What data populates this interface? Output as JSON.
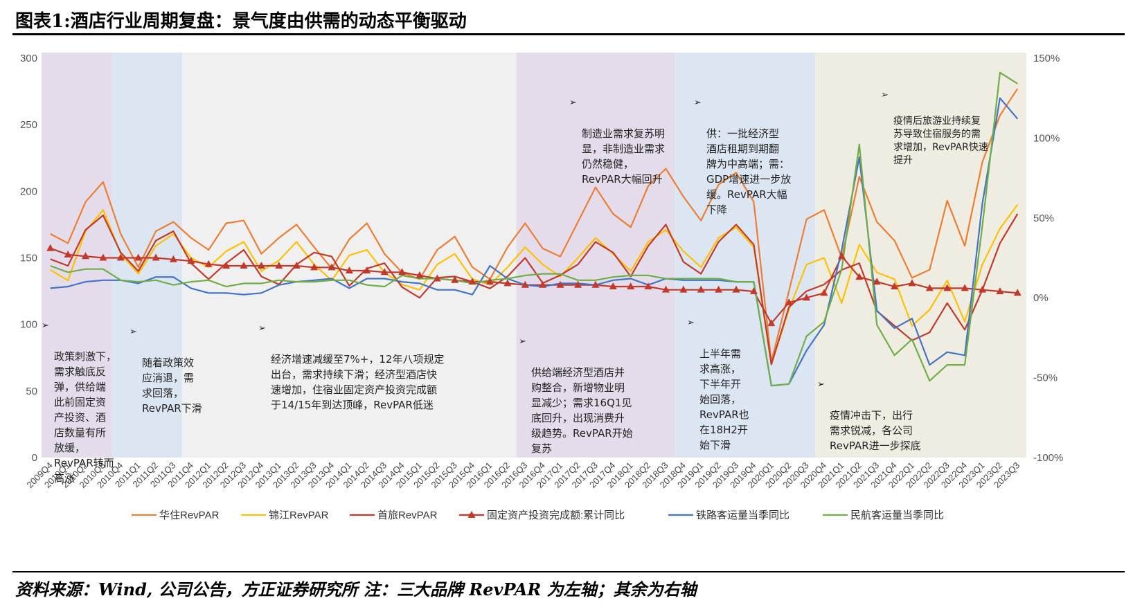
{
  "title": "图表1:酒店行业周期复盘：景气度由供需的动态平衡驱动",
  "source": "资料来源：Wind, 公司公告，方正证券研究所 注：三大品牌 RevPAR 为左轴；其余为右轴",
  "bullet_glyph": "➢",
  "chart_data": {
    "type": "line",
    "categories": [
      "2009Q4",
      "2010Q1",
      "2010Q2",
      "2010Q3",
      "2010Q4",
      "2011Q1",
      "2011Q2",
      "2011Q3",
      "2011Q4",
      "2012Q1",
      "2012Q2",
      "2012Q3",
      "2012Q4",
      "2013Q1",
      "2013Q2",
      "2013Q3",
      "2013Q4",
      "2014Q1",
      "2014Q2",
      "2014Q3",
      "2014Q4",
      "2015Q1",
      "2015Q2",
      "2015Q3",
      "2015Q4",
      "2016Q1",
      "2016Q2",
      "2016Q3",
      "2016Q4",
      "2017Q1",
      "2017Q2",
      "2017Q3",
      "2017Q4",
      "2018Q1",
      "2018Q2",
      "2018Q3",
      "2018Q4",
      "2019Q1",
      "2019Q2",
      "2019Q3",
      "2019Q4",
      "2020Q1",
      "2020Q2",
      "2020Q3",
      "2020Q4",
      "2021Q1",
      "2021Q2",
      "2021Q3",
      "2021Q4",
      "2022Q1",
      "2022Q2",
      "2022Q3",
      "2022Q4",
      "2023Q1",
      "2023Q2",
      "2023Q3"
    ],
    "y_left": {
      "min": 0,
      "max": 300,
      "ticks": [
        "0",
        "50",
        "100",
        "150",
        "200",
        "250",
        "300"
      ]
    },
    "y_right": {
      "min": -100,
      "max": 150,
      "ticks": [
        "-100%",
        "-50%",
        "0%",
        "50%",
        "100%",
        "150%"
      ]
    },
    "series": [
      {
        "name": "华住RevPAR",
        "axis": "left",
        "color": "#ED7D31",
        "marker": "none",
        "values": [
          168,
          161,
          192,
          207,
          168,
          143,
          170,
          177,
          165,
          156,
          176,
          178,
          153,
          165,
          175,
          158,
          142,
          164,
          176,
          153,
          139,
          134,
          156,
          166,
          143,
          134,
          158,
          176,
          157,
          151,
          177,
          203,
          183,
          173,
          204,
          217,
          196,
          178,
          205,
          214,
          192,
          72,
          125,
          179,
          186,
          150,
          211,
          177,
          163,
          135,
          141,
          193,
          159,
          222,
          257,
          277
        ]
      },
      {
        "name": "锦江RevPAR",
        "axis": "left",
        "color": "#FFC000",
        "marker": "none",
        "values": [
          141,
          133,
          170,
          186,
          153,
          138,
          159,
          168,
          150,
          143,
          155,
          162,
          140,
          148,
          162,
          145,
          133,
          152,
          156,
          139,
          130,
          126,
          145,
          153,
          134,
          130,
          143,
          158,
          145,
          136,
          150,
          165,
          153,
          140,
          162,
          171,
          155,
          143,
          165,
          173,
          158,
          70,
          111,
          145,
          150,
          116,
          160,
          139,
          134,
          99,
          111,
          133,
          102,
          145,
          172,
          190
        ]
      },
      {
        "name": "首旅RevPAR",
        "axis": "left",
        "color": "#C0392B",
        "marker": "none",
        "values": [
          149,
          144,
          171,
          182,
          154,
          140,
          163,
          170,
          146,
          134,
          146,
          156,
          136,
          130,
          145,
          154,
          151,
          129,
          142,
          146,
          128,
          120,
          135,
          136,
          132,
          127,
          136,
          150,
          131,
          137,
          145,
          162,
          154,
          136,
          159,
          175,
          147,
          138,
          162,
          175,
          160,
          70,
          113,
          125,
          130,
          141,
          146,
          110,
          99,
          88,
          94,
          116,
          96,
          126,
          161,
          183
        ]
      },
      {
        "name": "固定资产投资完成额:累计同比",
        "axis": "right",
        "color": "#C0392B",
        "marker": "triangle",
        "values": [
          31,
          27,
          26,
          25,
          25,
          25,
          25,
          24,
          23,
          21,
          20,
          20,
          20,
          20,
          20,
          19,
          19,
          17,
          17,
          16,
          16,
          14,
          12,
          11,
          10,
          10,
          9,
          8,
          8,
          8,
          8,
          8,
          7,
          7,
          7,
          5,
          5,
          5,
          5,
          5,
          4,
          -16,
          -3,
          0,
          3,
          26,
          13,
          10,
          7,
          9,
          6,
          6,
          6,
          5,
          4,
          3
        ]
      },
      {
        "name": "铁路客运量当季同比",
        "axis": "right",
        "color": "#4472C4",
        "marker": "none",
        "values": [
          6,
          7,
          10,
          11,
          11,
          9,
          13,
          13,
          6,
          3,
          3,
          2,
          3,
          8,
          10,
          11,
          12,
          6,
          12,
          12,
          10,
          9,
          5,
          5,
          2,
          20,
          12,
          8,
          7,
          9,
          9,
          8,
          11,
          12,
          8,
          12,
          11,
          11,
          11,
          10,
          10,
          -55,
          -54,
          -33,
          -17,
          30,
          88,
          -8,
          -19,
          -13,
          -42,
          -34,
          -36,
          59,
          125,
          112
        ]
      },
      {
        "name": "民航客运量当季同比",
        "axis": "right",
        "color": "#70AD47",
        "marker": "none",
        "values": [
          20,
          16,
          18,
          18,
          11,
          10,
          11,
          8,
          10,
          11,
          7,
          9,
          9,
          11,
          10,
          10,
          11,
          11,
          8,
          7,
          14,
          12,
          12,
          11,
          9,
          11,
          12,
          14,
          15,
          15,
          11,
          11,
          13,
          14,
          14,
          12,
          12,
          12,
          12,
          10,
          10,
          -55,
          -54,
          -24,
          -15,
          18,
          96,
          -17,
          -36,
          -26,
          -52,
          -42,
          -42,
          45,
          141,
          134
        ]
      }
    ],
    "shaded_periods": [
      {
        "from": "2009Q4",
        "to": "2010Q3",
        "color": "#E4DCEB"
      },
      {
        "from": "2010Q4",
        "to": "2011Q3",
        "color": "#DCE6F2"
      },
      {
        "from": "2011Q4",
        "to": "2016Q2",
        "color": "#F0F0F0"
      },
      {
        "from": "2016Q3",
        "to": "2018Q3",
        "color": "#E4DCEB"
      },
      {
        "from": "2018Q4",
        "to": "2020Q3",
        "color": "#DCE6F2"
      },
      {
        "from": "2020Q4",
        "to": "2023Q3",
        "color": "#EFEDE2"
      }
    ],
    "annotations": [
      "政策刺激下，\n需求触底反\n弹，供给端\n此前固定资\n产投资、酒\n店数量有所\n放缓，\nRevPAR转而\n高涨",
      "随着政策效\n应消退，需\n求回落，\nRevPAR下滑",
      "经济增速减缓至7%+，12年八项规定\n出台，需求持续下滑；经济型酒店快\n速增加，住宿业固定资产投资完成额\n于14/15年到达顶峰，RevPAR低迷",
      "供给端经济型酒店并\n购整合，新增物业明\n显减少；需求16Q1见\n底回升，出现消费升\n级趋势。RevPAR开始\n复苏",
      "制造业需求复苏明\n显，非制造业需求\n仍然稳健，\nRevPAR大幅回升",
      "供：一批经济型\n酒店租期到期翻\n牌为中高端；需：\nGDP增速进一步放\n缓。RevPAR大幅\n下降",
      "上半年需\n求高涨，\n下半年开\n始回落，\nRevPAR也\n在18H2开\n始下滑",
      "疫情冲击下，出行\n需求锐减，各公司\nRevPAR进一步探底",
      "疫情后旅游业持续复\n苏导致住宿服务的需\n求增加，RevPAR快速\n提升"
    ]
  }
}
